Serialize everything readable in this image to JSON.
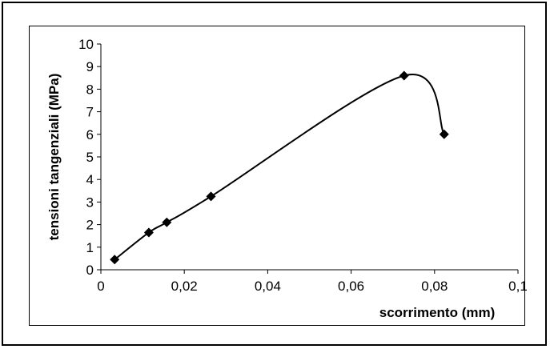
{
  "chart_data": {
    "type": "scatter",
    "title": "",
    "xlabel": "scorrimento (mm)",
    "ylabel": "tensioni tangenziali (MPa)",
    "xlim": [
      0,
      0.1
    ],
    "ylim": [
      0,
      10
    ],
    "x_ticks": [
      "0",
      "0,02",
      "0,04",
      "0,06",
      "0,08",
      "0,1"
    ],
    "y_ticks": [
      "0",
      "1",
      "2",
      "3",
      "4",
      "5",
      "6",
      "7",
      "8",
      "9",
      "10"
    ],
    "grid": false,
    "legend": "none",
    "marker": "diamond",
    "line": "smooth",
    "series": [
      {
        "x": [
          0.0033,
          0.0115,
          0.0158,
          0.0264,
          0.0727,
          0.0823
        ],
        "y": [
          0.45,
          1.65,
          2.1,
          3.25,
          8.6,
          6.0
        ]
      }
    ]
  }
}
